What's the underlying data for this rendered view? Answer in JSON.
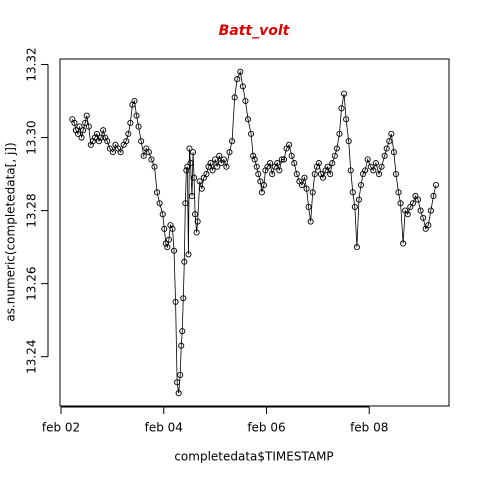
{
  "chart_data": {
    "type": "line",
    "title": "Batt_volt",
    "xlabel": "completedata$TIMESTAMP",
    "ylabel": "as.numeric(completedata[, j])",
    "x": [
      2.22,
      2.26,
      2.29,
      2.33,
      2.36,
      2.4,
      2.43,
      2.47,
      2.5,
      2.54,
      2.58,
      2.62,
      2.66,
      2.7,
      2.74,
      2.78,
      2.82,
      2.86,
      2.9,
      2.95,
      3.01,
      3.06,
      3.11,
      3.16,
      3.22,
      3.27,
      3.31,
      3.35,
      3.39,
      3.43,
      3.47,
      3.51,
      3.56,
      3.61,
      3.66,
      3.71,
      3.76,
      3.82,
      3.87,
      3.92,
      3.98,
      4.01,
      4.04,
      4.07,
      4.1,
      4.13,
      4.17,
      4.2,
      4.23,
      4.26,
      4.29,
      4.32,
      4.34,
      4.36,
      4.38,
      4.4,
      4.42,
      4.44,
      4.46,
      4.48,
      4.5,
      4.52,
      4.55,
      4.57,
      4.59,
      4.61,
      4.64,
      4.66,
      4.7,
      4.74,
      4.78,
      4.83,
      4.87,
      4.91,
      4.95,
      5.0,
      5.04,
      5.08,
      5.12,
      5.17,
      5.22,
      5.28,
      5.33,
      5.38,
      5.43,
      5.49,
      5.54,
      5.59,
      5.64,
      5.7,
      5.74,
      5.77,
      5.81,
      5.84,
      5.88,
      5.91,
      5.95,
      5.98,
      6.02,
      6.07,
      6.11,
      6.16,
      6.21,
      6.25,
      6.3,
      6.34,
      6.39,
      6.44,
      6.49,
      6.54,
      6.59,
      6.64,
      6.69,
      6.74,
      6.78,
      6.82,
      6.86,
      6.9,
      6.94,
      6.98,
      7.02,
      7.06,
      7.1,
      7.15,
      7.19,
      7.24,
      7.28,
      7.33,
      7.37,
      7.42,
      7.46,
      7.51,
      7.55,
      7.6,
      7.64,
      7.68,
      7.72,
      7.76,
      7.8,
      7.84,
      7.88,
      7.92,
      7.97,
      8.03,
      8.08,
      8.13,
      8.19,
      8.24,
      8.3,
      8.34,
      8.39,
      8.43,
      8.48,
      8.52,
      8.57,
      8.61,
      8.66,
      8.7,
      8.75,
      8.8,
      8.85,
      8.9,
      8.95,
      9.0,
      9.05,
      9.1,
      9.15,
      9.2,
      9.25,
      9.3
    ],
    "series": [
      {
        "name": "Batt_volt",
        "color": "#000000",
        "values": [
          13.305,
          13.304,
          13.302,
          13.301,
          13.303,
          13.3,
          13.302,
          13.304,
          13.306,
          13.303,
          13.298,
          13.299,
          13.3,
          13.301,
          13.299,
          13.3,
          13.302,
          13.3,
          13.299,
          13.297,
          13.296,
          13.298,
          13.297,
          13.296,
          13.298,
          13.299,
          13.301,
          13.304,
          13.309,
          13.31,
          13.306,
          13.303,
          13.299,
          13.295,
          13.297,
          13.296,
          13.294,
          13.292,
          13.285,
          13.282,
          13.279,
          13.275,
          13.271,
          13.27,
          13.272,
          13.276,
          13.275,
          13.269,
          13.255,
          13.233,
          13.23,
          13.235,
          13.243,
          13.247,
          13.256,
          13.266,
          13.282,
          13.291,
          13.292,
          13.268,
          13.297,
          13.293,
          13.284,
          13.296,
          13.289,
          13.279,
          13.274,
          13.277,
          13.288,
          13.286,
          13.289,
          13.29,
          13.292,
          13.293,
          13.291,
          13.294,
          13.292,
          13.295,
          13.293,
          13.294,
          13.292,
          13.296,
          13.299,
          13.311,
          13.316,
          13.318,
          13.314,
          13.31,
          13.305,
          13.301,
          13.295,
          13.294,
          13.292,
          13.29,
          13.288,
          13.285,
          13.287,
          13.291,
          13.292,
          13.293,
          13.29,
          13.292,
          13.293,
          13.291,
          13.294,
          13.294,
          13.297,
          13.298,
          13.295,
          13.293,
          13.29,
          13.288,
          13.287,
          13.289,
          13.286,
          13.281,
          13.277,
          13.285,
          13.29,
          13.292,
          13.293,
          13.29,
          13.289,
          13.291,
          13.292,
          13.29,
          13.293,
          13.295,
          13.297,
          13.301,
          13.308,
          13.312,
          13.305,
          13.299,
          13.291,
          13.285,
          13.281,
          13.27,
          13.283,
          13.287,
          13.29,
          13.291,
          13.294,
          13.292,
          13.291,
          13.293,
          13.29,
          13.292,
          13.295,
          13.297,
          13.299,
          13.301,
          13.296,
          13.29,
          13.285,
          13.282,
          13.271,
          13.28,
          13.279,
          13.281,
          13.282,
          13.284,
          13.283,
          13.28,
          13.278,
          13.275,
          13.276,
          13.28,
          13.284,
          13.287
        ]
      }
    ],
    "xlim": [
      1.98,
      9.553
    ],
    "xticks": [
      {
        "value": 2,
        "label": "feb 02"
      },
      {
        "value": 4,
        "label": "feb 04"
      },
      {
        "value": 6,
        "label": "feb 06"
      },
      {
        "value": 8,
        "label": "feb 08"
      }
    ],
    "ylim": [
      13.2265,
      13.3215
    ],
    "yticks": [
      13.24,
      13.26,
      13.28,
      {
        "value": 13.3,
        "label": "13.30"
      },
      13.32
    ]
  }
}
